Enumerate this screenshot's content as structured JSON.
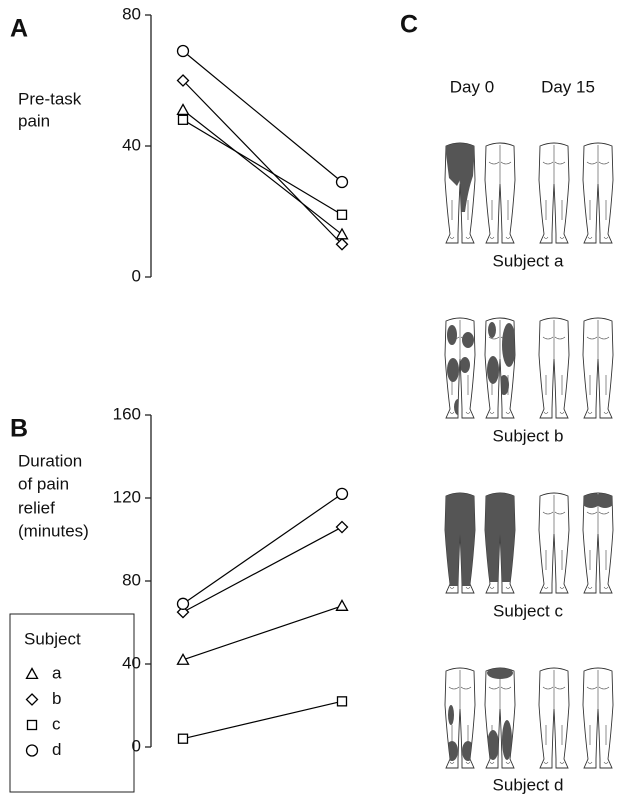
{
  "chart_data": [
    {
      "type": "line",
      "panel_label": "A",
      "ylabel": [
        "Pre-task",
        "pain"
      ],
      "categories": [
        null,
        null
      ],
      "ylim": [
        0,
        80
      ],
      "yticks": [
        0,
        40,
        80
      ],
      "series": [
        {
          "marker": "triangle",
          "color": "#000000",
          "values": [
            51,
            13
          ]
        },
        {
          "marker": "diamond",
          "color": "#000000",
          "values": [
            60,
            10
          ]
        },
        {
          "marker": "square",
          "color": "#000000",
          "values": [
            48,
            19
          ]
        },
        {
          "marker": "circle",
          "color": "#000000",
          "values": [
            69,
            29
          ]
        }
      ]
    },
    {
      "type": "line",
      "panel_label": "B",
      "ylabel": [
        "Duration",
        "of pain",
        "relief",
        "(minutes)"
      ],
      "categories": [
        null,
        null
      ],
      "ylim": [
        0,
        160
      ],
      "yticks": [
        0,
        40,
        80,
        120,
        160
      ],
      "legend": true,
      "legend_title": "Subject",
      "legend_position": "lower left",
      "series": [
        {
          "name": "a",
          "marker": "triangle",
          "color": "#000000",
          "values": [
            42,
            68
          ]
        },
        {
          "name": "b",
          "marker": "diamond",
          "color": "#000000",
          "values": [
            65,
            106
          ]
        },
        {
          "name": "c",
          "marker": "square",
          "color": "#000000",
          "values": [
            4,
            22
          ]
        },
        {
          "name": "d",
          "marker": "circle",
          "color": "#000000",
          "values": [
            69,
            122
          ]
        }
      ]
    }
  ],
  "panel_c": {
    "label": "C",
    "columns": [
      "Day 0",
      "Day 15"
    ],
    "subjects": [
      "Subject a",
      "Subject b",
      "Subject c",
      "Subject d"
    ]
  }
}
